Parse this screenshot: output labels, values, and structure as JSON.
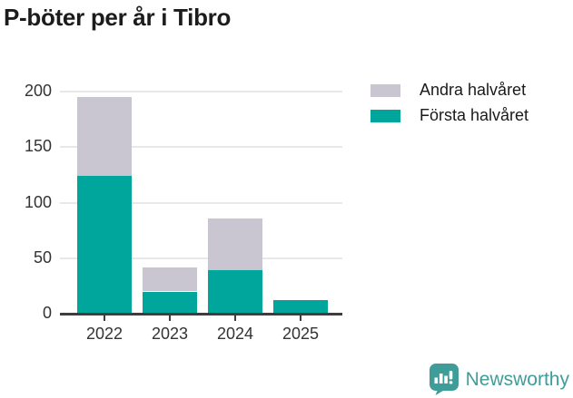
{
  "brand": {
    "name": "Newsworthy"
  },
  "colors": {
    "first_half": "#00a69b",
    "second_half": "#c9c6d1",
    "grid": "#e8e7ea",
    "axis": "#3d3d3d",
    "axis_text": "#333333",
    "title_text": "#1c1c1c",
    "logo": "#3f9d99"
  },
  "legend": [
    {
      "label": "Andra halvåret",
      "color": "#c9c6d1"
    },
    {
      "label": "Första halvåret",
      "color": "#00a69b"
    }
  ],
  "chart_data": {
    "type": "bar",
    "stacked": true,
    "title": "P-böter per år i Tibro",
    "categories": [
      "2022",
      "2023",
      "2024",
      "2025"
    ],
    "series": [
      {
        "name": "Första halvåret",
        "color": "#00a69b",
        "values": [
          124,
          20,
          39,
          12
        ]
      },
      {
        "name": "Andra halvåret",
        "color": "#c9c6d1",
        "values": [
          71,
          22,
          47,
          0
        ]
      }
    ],
    "totals": [
      195,
      42,
      86,
      12
    ],
    "xlabel": "",
    "ylabel": "",
    "ylim": [
      0,
      200
    ],
    "yticks": [
      0,
      50,
      100,
      150,
      200
    ],
    "grid": true,
    "legend_position": "top-right"
  }
}
